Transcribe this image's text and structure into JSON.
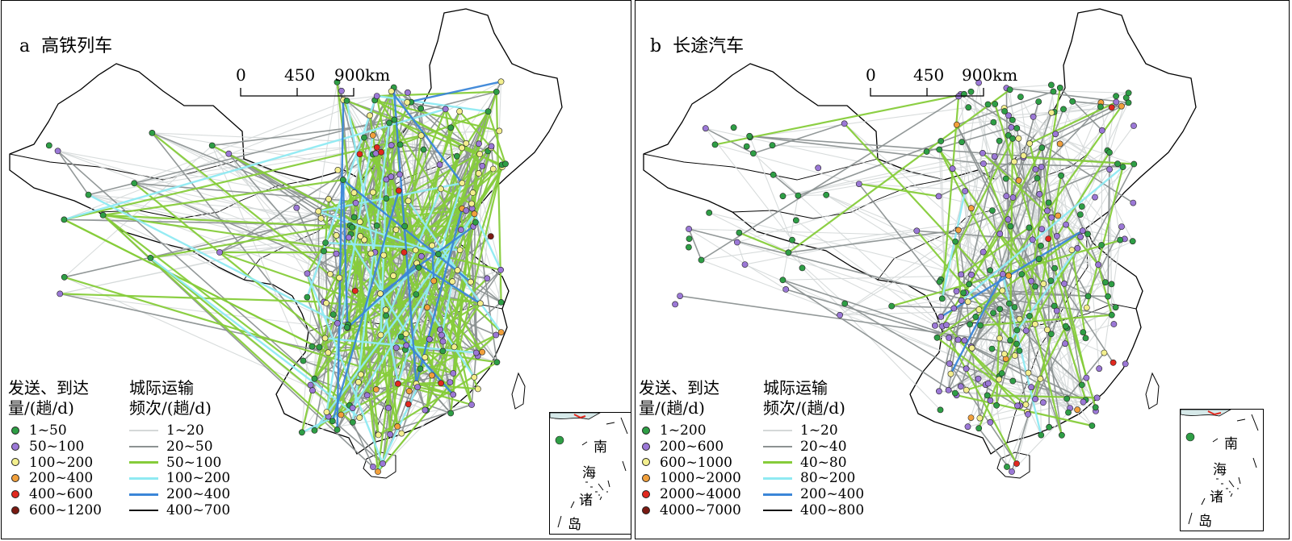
{
  "panels": [
    {
      "letter": "a",
      "title": "高铁列车",
      "scale": {
        "zero": "0",
        "mid": "450",
        "end": "900km"
      },
      "node_legend": {
        "title_line1": "发送、到达",
        "title_line2": "量/(趟/d)",
        "items": [
          {
            "label": "1~50",
            "color": "#2e9e45"
          },
          {
            "label": "50~100",
            "color": "#9b78d6"
          },
          {
            "label": "100~200",
            "color": "#f3ef8e"
          },
          {
            "label": "200~400",
            "color": "#f1a03c"
          },
          {
            "label": "400~600",
            "color": "#e0291f"
          },
          {
            "label": "600~1200",
            "color": "#7a1a12"
          }
        ]
      },
      "link_legend": {
        "title_line1": "城际运输",
        "title_line2": "频次/(趟/d)",
        "items": [
          {
            "label": "1~20",
            "color": "#d4d8d8",
            "width": 2
          },
          {
            "label": "20~50",
            "color": "#8c9292",
            "width": 2
          },
          {
            "label": "50~100",
            "color": "#86cc3a",
            "width": 3
          },
          {
            "label": "100~200",
            "color": "#8feaf2",
            "width": 3
          },
          {
            "label": "200~400",
            "color": "#3b86d8",
            "width": 3
          },
          {
            "label": "400~700",
            "color": "#111111",
            "width": 2
          }
        ]
      },
      "inset_labels": [
        "南",
        "海",
        "诸",
        "岛"
      ]
    },
    {
      "letter": "b",
      "title": "长途汽车",
      "scale": {
        "zero": "0",
        "mid": "450",
        "end": "900km"
      },
      "node_legend": {
        "title_line1": "发送、到达",
        "title_line2": "量/(趟/d)",
        "items": [
          {
            "label": "1~200",
            "color": "#2e9e45"
          },
          {
            "label": "200~600",
            "color": "#9b78d6"
          },
          {
            "label": "600~1000",
            "color": "#f3ef8e"
          },
          {
            "label": "1000~2000",
            "color": "#f1a03c"
          },
          {
            "label": "2000~4000",
            "color": "#e0291f"
          },
          {
            "label": "4000~7000",
            "color": "#7a1a12"
          }
        ]
      },
      "link_legend": {
        "title_line1": "城际运输",
        "title_line2": "频次/(趟/d)",
        "items": [
          {
            "label": "1~20",
            "color": "#d4d8d8",
            "width": 2
          },
          {
            "label": "20~40",
            "color": "#8c9292",
            "width": 2
          },
          {
            "label": "40~80",
            "color": "#86cc3a",
            "width": 3
          },
          {
            "label": "80~200",
            "color": "#8feaf2",
            "width": 3
          },
          {
            "label": "200~400",
            "color": "#3b86d8",
            "width": 3
          },
          {
            "label": "400~800",
            "color": "#111111",
            "width": 2
          }
        ]
      },
      "inset_labels": [
        "南",
        "海",
        "诸",
        "岛"
      ]
    }
  ]
}
